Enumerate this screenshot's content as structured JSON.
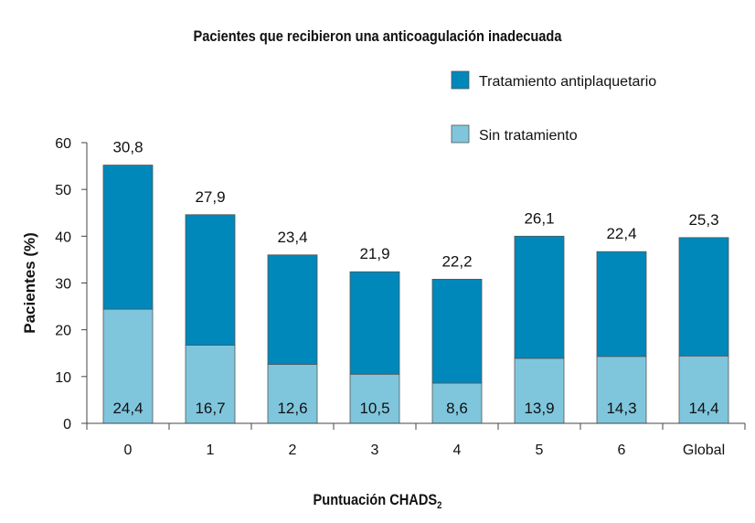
{
  "chart_data": {
    "type": "bar",
    "stacked": true,
    "title": "Pacientes que recibieron una anticoagulación inadecuada",
    "xlabel": "Puntuación CHADS",
    "xlabel_subscript": "2",
    "ylabel": "Pacientes (%)",
    "ylim": [
      0,
      60
    ],
    "yticks": [
      0,
      10,
      20,
      30,
      40,
      50,
      60
    ],
    "categories": [
      "0",
      "1",
      "2",
      "3",
      "4",
      "5",
      "6",
      "Global"
    ],
    "series": [
      {
        "name": "Sin tratamiento",
        "color": "#7fc6dd",
        "values": [
          24.4,
          16.7,
          12.6,
          10.5,
          8.6,
          13.9,
          14.3,
          14.4
        ],
        "labels": [
          "24,4",
          "16,7",
          "12,6",
          "10,5",
          "8,6",
          "13,9",
          "14,3",
          "14,4"
        ]
      },
      {
        "name": "Tratamiento antiplaquetario",
        "color": "#0088bb",
        "values": [
          30.8,
          27.9,
          23.4,
          21.9,
          22.2,
          26.1,
          22.4,
          25.3
        ],
        "labels": [
          "30,8",
          "27,9",
          "23,4",
          "21,9",
          "22,2",
          "26,1",
          "22,4",
          "25,3"
        ]
      }
    ],
    "legend_position": "top-right",
    "grid": false
  }
}
